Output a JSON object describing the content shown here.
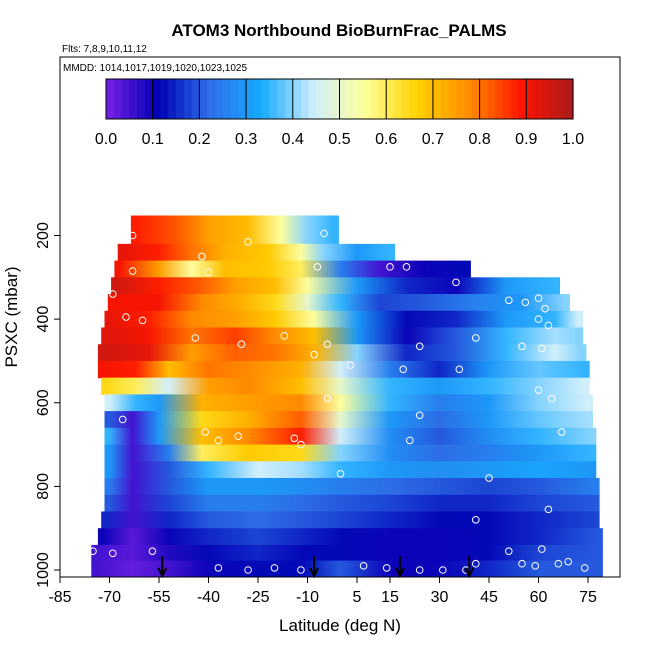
{
  "chart_data": {
    "type": "heatmap",
    "title": "ATOM3 Northbound BioBurnFrac_PALMS",
    "flights_label": "Flts: 7,8,9,10,11,12",
    "dates_label": "MMDD: 1014,1017,1019,1020,1023,1025",
    "xlabel": "Latitude (deg N)",
    "ylabel": "PSXC (mbar)",
    "x_ticks": [
      "-85",
      "-70",
      "-55",
      "-40",
      "-25",
      "-10",
      "5",
      "15",
      "30",
      "45",
      "60",
      "75"
    ],
    "y_ticks": [
      "200",
      "400",
      "600",
      "800",
      "1000"
    ],
    "colorbar_ticks": [
      "0.0",
      "0.1",
      "0.2",
      "0.3",
      "0.4",
      "0.5",
      "0.6",
      "0.7",
      "0.8",
      "0.9",
      "1.0"
    ],
    "xlim": [
      -85,
      85
    ],
    "ylim": [
      1000,
      0
    ],
    "colorbar_range": [
      0,
      1
    ],
    "colorscale": [
      "#7a22e6",
      "#0000b4",
      "#2e6fe8",
      "#16aaff",
      "#cfeeff",
      "#ffff99",
      "#ffd200",
      "#ff8c00",
      "#ff1400",
      "#a81c1c"
    ],
    "rows": [
      {
        "p": 200,
        "lat": [
          -62,
          -50,
          -40,
          -28,
          -18,
          -10,
          -2
        ],
        "values": [
          0.88,
          0.83,
          0.75,
          0.7,
          0.55,
          0.4,
          0.35
        ]
      },
      {
        "p": 240,
        "lat": [
          -66,
          -55,
          -45,
          -35,
          -22,
          -12,
          -5,
          5,
          15
        ],
        "values": [
          0.92,
          0.88,
          0.8,
          0.72,
          0.68,
          0.55,
          0.4,
          0.3,
          0.35
        ]
      },
      {
        "p": 280,
        "lat": [
          -67,
          -55,
          -45,
          -35,
          -22,
          -12,
          0,
          12,
          25,
          38
        ],
        "values": [
          0.9,
          0.75,
          0.55,
          0.7,
          0.68,
          0.6,
          0.25,
          0.05,
          0.1,
          0.12
        ]
      },
      {
        "p": 320,
        "lat": [
          -68,
          -55,
          -42,
          -32,
          -20,
          -10,
          5,
          20,
          35,
          50,
          65
        ],
        "values": [
          0.95,
          0.88,
          0.82,
          0.75,
          0.7,
          0.55,
          0.3,
          0.15,
          0.1,
          0.3,
          0.35
        ]
      },
      {
        "p": 360,
        "lat": [
          -69,
          -55,
          -42,
          -30,
          -20,
          -10,
          0,
          12,
          25,
          40,
          55,
          68
        ],
        "values": [
          0.9,
          0.9,
          0.78,
          0.72,
          0.65,
          0.5,
          0.35,
          0.18,
          0.2,
          0.25,
          0.3,
          0.4
        ]
      },
      {
        "p": 400,
        "lat": [
          -70,
          -58,
          -45,
          -32,
          -20,
          -8,
          5,
          20,
          35,
          50,
          65,
          72
        ],
        "values": [
          0.92,
          0.88,
          0.78,
          0.75,
          0.68,
          0.55,
          0.3,
          0.12,
          0.15,
          0.3,
          0.35,
          0.45
        ]
      },
      {
        "p": 440,
        "lat": [
          -71,
          -58,
          -45,
          -32,
          -20,
          -8,
          5,
          20,
          35,
          50,
          65,
          72
        ],
        "values": [
          0.93,
          0.9,
          0.8,
          0.85,
          0.78,
          0.7,
          0.3,
          0.1,
          0.2,
          0.35,
          0.42,
          0.4
        ]
      },
      {
        "p": 480,
        "lat": [
          -72,
          -58,
          -45,
          -32,
          -20,
          -8,
          5,
          20,
          35,
          50,
          65,
          73
        ],
        "values": [
          0.95,
          0.92,
          0.75,
          0.82,
          0.8,
          0.72,
          0.4,
          0.15,
          0.2,
          0.35,
          0.45,
          0.4
        ]
      },
      {
        "p": 520,
        "lat": [
          -72,
          -62,
          -52,
          -40,
          -28,
          -12,
          0,
          15,
          30,
          45,
          60,
          74
        ],
        "values": [
          0.9,
          0.88,
          0.7,
          0.8,
          0.78,
          0.72,
          0.45,
          0.25,
          0.15,
          0.3,
          0.38,
          0.35
        ]
      },
      {
        "p": 560,
        "lat": [
          -71,
          -62,
          -52,
          -40,
          -28,
          -12,
          0,
          15,
          30,
          45,
          60,
          74
        ],
        "values": [
          0.65,
          0.6,
          0.45,
          0.75,
          0.78,
          0.7,
          0.5,
          0.35,
          0.3,
          0.35,
          0.4,
          0.45
        ]
      },
      {
        "p": 600,
        "lat": [
          -70,
          -62,
          -55,
          -42,
          -28,
          -12,
          0,
          15,
          30,
          45,
          60,
          75
        ],
        "values": [
          0.45,
          0.35,
          0.3,
          0.72,
          0.75,
          0.78,
          0.55,
          0.35,
          0.25,
          0.3,
          0.4,
          0.45
        ]
      },
      {
        "p": 640,
        "lat": [
          -70,
          -63,
          -55,
          -42,
          -28,
          -12,
          0,
          15,
          30,
          45,
          60,
          75
        ],
        "values": [
          0.2,
          0.05,
          0.3,
          0.65,
          0.72,
          0.82,
          0.5,
          0.3,
          0.22,
          0.3,
          0.38,
          0.42
        ]
      },
      {
        "p": 680,
        "lat": [
          -70,
          -63,
          -55,
          -42,
          -28,
          -12,
          0,
          15,
          30,
          45,
          60,
          76
        ],
        "values": [
          0.35,
          0.05,
          0.3,
          0.7,
          0.78,
          0.88,
          0.45,
          0.28,
          0.2,
          0.28,
          0.35,
          0.4
        ]
      },
      {
        "p": 720,
        "lat": [
          -70,
          -63,
          -52,
          -42,
          -28,
          -12,
          0,
          15,
          30,
          45,
          60,
          76
        ],
        "values": [
          0.3,
          0.05,
          0.25,
          0.6,
          0.68,
          0.65,
          0.4,
          0.28,
          0.22,
          0.25,
          0.3,
          0.35
        ]
      },
      {
        "p": 760,
        "lat": [
          -70,
          -63,
          -52,
          -40,
          -25,
          -12,
          0,
          15,
          30,
          45,
          60,
          76
        ],
        "values": [
          0.3,
          0.05,
          0.2,
          0.35,
          0.45,
          0.42,
          0.35,
          0.3,
          0.28,
          0.3,
          0.32,
          0.3
        ]
      },
      {
        "p": 800,
        "lat": [
          -70,
          -63,
          -52,
          -40,
          -25,
          -12,
          0,
          15,
          30,
          45,
          60,
          77
        ],
        "values": [
          0.25,
          0.05,
          0.2,
          0.3,
          0.3,
          0.28,
          0.25,
          0.22,
          0.2,
          0.18,
          0.2,
          0.25
        ]
      },
      {
        "p": 840,
        "lat": [
          -70,
          -63,
          -52,
          -40,
          -25,
          -12,
          0,
          15,
          30,
          45,
          60,
          77
        ],
        "values": [
          0.2,
          0.05,
          0.18,
          0.25,
          0.25,
          0.22,
          0.2,
          0.18,
          0.15,
          0.15,
          0.18,
          0.2
        ]
      },
      {
        "p": 880,
        "lat": [
          -71,
          -63,
          -52,
          -40,
          -25,
          -12,
          0,
          15,
          30,
          45,
          60,
          77
        ],
        "values": [
          0.15,
          0.05,
          0.15,
          0.2,
          0.22,
          0.2,
          0.18,
          0.15,
          0.12,
          0.12,
          0.15,
          0.18
        ]
      },
      {
        "p": 920,
        "lat": [
          -72,
          -63,
          -52,
          -40,
          -25,
          -12,
          0,
          15,
          30,
          45,
          60,
          78
        ],
        "values": [
          0.1,
          0.03,
          0.1,
          0.15,
          0.18,
          0.15,
          0.12,
          0.1,
          0.1,
          0.12,
          0.15,
          0.2
        ]
      },
      {
        "p": 960,
        "lat": [
          -74,
          -63,
          -52,
          -40,
          -25,
          -12,
          0,
          15,
          30,
          45,
          60,
          78
        ],
        "values": [
          0.05,
          0.03,
          0.08,
          0.12,
          0.15,
          0.12,
          0.12,
          0.1,
          0.1,
          0.12,
          0.18,
          0.2
        ]
      },
      {
        "p": 995,
        "lat": [
          -74,
          -63,
          -52,
          -40,
          -25,
          -12,
          0,
          15,
          30,
          45,
          60,
          78
        ],
        "values": [
          0.05,
          0.02,
          0.05,
          0.1,
          0.12,
          0.12,
          0.2,
          0.1,
          0.1,
          0.15,
          0.2,
          0.2
        ]
      }
    ],
    "points": [
      [
        -63,
        200
      ],
      [
        -28,
        215
      ],
      [
        -5,
        195
      ],
      [
        -71,
        240
      ],
      [
        -42,
        250
      ],
      [
        -7,
        275
      ],
      [
        15,
        275
      ],
      [
        20,
        275
      ],
      [
        -63,
        285
      ],
      [
        -40,
        288
      ],
      [
        -72,
        315
      ],
      [
        -69,
        340
      ],
      [
        35,
        312
      ],
      [
        51,
        355
      ],
      [
        56,
        360
      ],
      [
        60,
        350
      ],
      [
        62,
        375
      ],
      [
        60,
        400
      ],
      [
        63,
        415
      ],
      [
        -65,
        395
      ],
      [
        -60,
        403
      ],
      [
        -44,
        445
      ],
      [
        -30,
        460
      ],
      [
        -17,
        440
      ],
      [
        -4,
        460
      ],
      [
        -8,
        485
      ],
      [
        24,
        465
      ],
      [
        41,
        445
      ],
      [
        55,
        465
      ],
      [
        61,
        470
      ],
      [
        -66,
        640
      ],
      [
        -41,
        670
      ],
      [
        -37,
        690
      ],
      [
        -31,
        680
      ],
      [
        -14,
        685
      ],
      [
        -12,
        700
      ],
      [
        3,
        510
      ],
      [
        19,
        520
      ],
      [
        36,
        520
      ],
      [
        60,
        570
      ],
      [
        64,
        590
      ],
      [
        67,
        670
      ],
      [
        -4,
        590
      ],
      [
        21,
        690
      ],
      [
        24,
        630
      ],
      [
        0,
        770
      ],
      [
        45,
        780
      ],
      [
        41,
        880
      ],
      [
        63,
        855
      ],
      [
        61,
        950
      ],
      [
        51,
        955
      ],
      [
        -75,
        955
      ],
      [
        -69,
        960
      ],
      [
        -57,
        955
      ],
      [
        -37,
        995
      ],
      [
        -28,
        1000
      ],
      [
        -20,
        995
      ],
      [
        -12,
        1000
      ],
      [
        7,
        990
      ],
      [
        14,
        995
      ],
      [
        24,
        1000
      ],
      [
        31,
        1000
      ],
      [
        38,
        1000
      ],
      [
        41,
        985
      ],
      [
        55,
        985
      ],
      [
        59,
        990
      ],
      [
        66,
        985
      ],
      [
        69,
        980
      ],
      [
        74,
        995
      ]
    ],
    "arrows_lat": [
      -54,
      -8,
      18,
      39
    ]
  }
}
